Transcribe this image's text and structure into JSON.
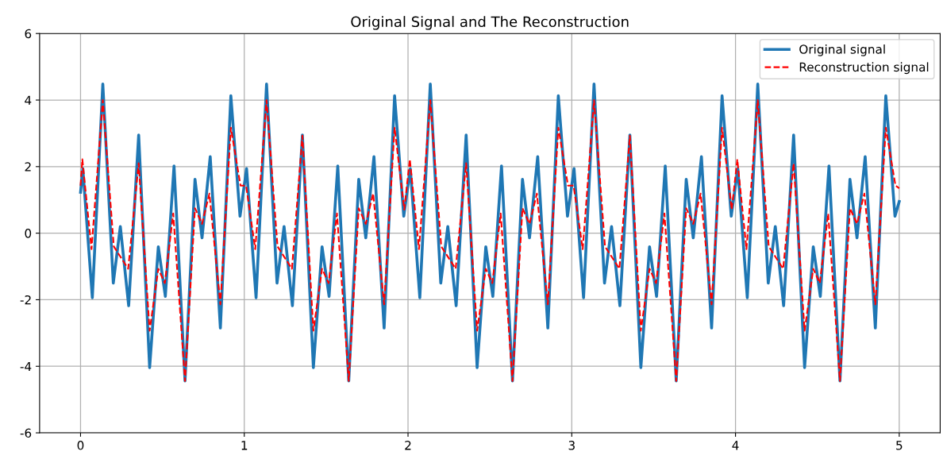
{
  "chart_data": {
    "type": "line",
    "title": "Original Signal and The Reconstruction",
    "xlim": [
      -0.25,
      5.25
    ],
    "ylim": [
      -6,
      6
    ],
    "xticks": [
      0,
      1,
      2,
      3,
      4,
      5
    ],
    "yticks": [
      -6,
      -4,
      -2,
      0,
      2,
      4,
      6
    ],
    "grid": true,
    "legend": "top right",
    "series": [
      {
        "name": "Original signal",
        "color": "#1f77b4",
        "line_style": "solid",
        "x": [
          0,
          0.014,
          0.072,
          0.136,
          0.2,
          0.243,
          0.294,
          0.355,
          0.422,
          0.475,
          0.518,
          0.571,
          0.638,
          0.699,
          0.742,
          0.792,
          0.854,
          0.918,
          0.974,
          1.014,
          1.072,
          1.136,
          1.2,
          1.243,
          1.294,
          1.355,
          1.422,
          1.475,
          1.518,
          1.571,
          1.638,
          1.699,
          1.742,
          1.792,
          1.854,
          1.918,
          1.974,
          2.014,
          2.072,
          2.136,
          2.2,
          2.243,
          2.294,
          2.355,
          2.422,
          2.475,
          2.518,
          2.571,
          2.638,
          2.699,
          2.742,
          2.792,
          2.854,
          2.918,
          2.974,
          3.014,
          3.072,
          3.136,
          3.2,
          3.243,
          3.294,
          3.355,
          3.422,
          3.475,
          3.518,
          3.571,
          3.638,
          3.699,
          3.742,
          3.792,
          3.854,
          3.918,
          3.974,
          4.014,
          4.072,
          4.136,
          4.2,
          4.243,
          4.294,
          4.355,
          4.422,
          4.475,
          4.518,
          4.571,
          4.638,
          4.699,
          4.742,
          4.792,
          4.854,
          4.918,
          4.974,
          5
        ],
        "values": [
          1.23,
          1.94,
          -1.94,
          4.48,
          -1.5,
          0.2,
          -2.18,
          2.95,
          -4.04,
          -0.41,
          -1.9,
          2.02,
          -4.44,
          1.62,
          -0.14,
          2.3,
          -2.85,
          4.13,
          0.51,
          1.94,
          -1.94,
          4.48,
          -1.5,
          0.2,
          -2.18,
          2.95,
          -4.04,
          -0.41,
          -1.9,
          2.02,
          -4.44,
          1.62,
          -0.14,
          2.3,
          -2.85,
          4.13,
          0.51,
          1.94,
          -1.94,
          4.48,
          -1.5,
          0.2,
          -2.18,
          2.95,
          -4.04,
          -0.41,
          -1.9,
          2.02,
          -4.44,
          1.62,
          -0.14,
          2.3,
          -2.85,
          4.13,
          0.51,
          1.94,
          -1.94,
          4.48,
          -1.5,
          0.2,
          -2.18,
          2.95,
          -4.04,
          -0.41,
          -1.9,
          2.02,
          -4.44,
          1.62,
          -0.14,
          2.3,
          -2.85,
          4.13,
          0.51,
          1.94,
          -1.94,
          4.48,
          -1.5,
          0.2,
          -2.18,
          2.95,
          -4.04,
          -0.41,
          -1.9,
          2.02,
          -4.44,
          1.62,
          -0.14,
          2.3,
          -2.85,
          4.13,
          0.51,
          0.95
        ]
      },
      {
        "name": "Reconstruction signal",
        "color": "#ff0000",
        "line_style": "dashed",
        "x": [
          0,
          0.011,
          0.067,
          0.136,
          0.203,
          0.291,
          0.355,
          0.422,
          0.475,
          0.515,
          0.566,
          0.638,
          0.699,
          0.742,
          0.787,
          0.854,
          0.918,
          0.977,
          1.011,
          1.067,
          1.136,
          1.203,
          1.291,
          1.355,
          1.422,
          1.475,
          1.515,
          1.566,
          1.638,
          1.699,
          1.742,
          1.787,
          1.854,
          1.918,
          1.977,
          2.011,
          2.067,
          2.136,
          2.203,
          2.291,
          2.355,
          2.422,
          2.475,
          2.515,
          2.566,
          2.638,
          2.699,
          2.742,
          2.787,
          2.854,
          2.918,
          2.977,
          3.011,
          3.067,
          3.136,
          3.203,
          3.291,
          3.355,
          3.422,
          3.475,
          3.515,
          3.566,
          3.638,
          3.699,
          3.742,
          3.787,
          3.854,
          3.918,
          3.977,
          4.011,
          4.067,
          4.136,
          4.203,
          4.291,
          4.355,
          4.422,
          4.475,
          4.515,
          4.566,
          4.638,
          4.699,
          4.742,
          4.787,
          4.854,
          4.918,
          4.977,
          5
        ],
        "values": [
          1.43,
          2.22,
          -0.48,
          4.0,
          -0.4,
          -1.07,
          2.1,
          -2.93,
          -1.07,
          -1.5,
          0.59,
          -4.44,
          0.75,
          0.28,
          1.19,
          -2.14,
          3.17,
          1.43,
          1.43,
          -0.48,
          4.0,
          -0.4,
          -1.07,
          2.93,
          -2.93,
          -1.07,
          -1.5,
          0.59,
          -4.44,
          0.75,
          0.28,
          1.19,
          -2.14,
          3.17,
          0.71,
          2.22,
          -0.48,
          4.0,
          -0.4,
          -1.07,
          2.1,
          -2.93,
          -1.07,
          -1.5,
          0.59,
          -4.44,
          0.75,
          0.28,
          1.19,
          -2.14,
          3.17,
          1.43,
          1.43,
          -0.48,
          4.0,
          -0.4,
          -1.07,
          2.93,
          -2.93,
          -1.07,
          -1.5,
          0.59,
          -4.44,
          0.75,
          0.28,
          1.19,
          -2.14,
          3.17,
          0.71,
          2.22,
          -0.48,
          4.0,
          -0.4,
          -1.07,
          2.1,
          -2.93,
          -1.07,
          -1.5,
          0.59,
          -4.44,
          0.75,
          0.28,
          1.19,
          -2.14,
          3.17,
          1.43,
          1.35
        ]
      }
    ]
  }
}
